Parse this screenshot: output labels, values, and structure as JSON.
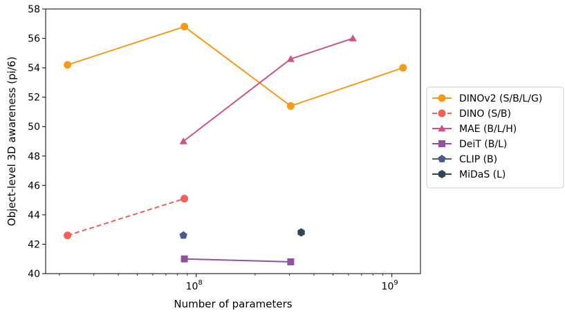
{
  "chart_data": {
    "type": "line",
    "title": "",
    "xlabel": "Number of parameters",
    "ylabel": "Object-level 3D awareness (pi/6)",
    "xscale": "log",
    "xlim": [
      17000000,
      1400000000
    ],
    "ylim": [
      40,
      58
    ],
    "yticks": [
      40,
      42,
      44,
      46,
      48,
      50,
      52,
      54,
      56,
      58
    ],
    "xticks": [
      {
        "value": 100000000,
        "base": "10",
        "exp": "8"
      },
      {
        "value": 1000000000,
        "base": "10",
        "exp": "9"
      }
    ],
    "grid": false,
    "legend_position": "right",
    "series": [
      {
        "name": "DINOv2 (S/B/L/G)",
        "color": "#f89a17",
        "marker": "circle",
        "dash": false,
        "points": [
          [
            22000000,
            54.2
          ],
          [
            87000000,
            56.8
          ],
          [
            304000000,
            51.4
          ],
          [
            1140000000,
            54.0
          ]
        ]
      },
      {
        "name": "DINO (S/B)",
        "color": "#f15f55",
        "marker": "circle",
        "dash": true,
        "points": [
          [
            22000000,
            42.6
          ],
          [
            87000000,
            45.1
          ]
        ]
      },
      {
        "name": "MAE (B/L/H)",
        "color": "#d15088",
        "marker": "triangle",
        "dash": false,
        "points": [
          [
            86000000,
            49.0
          ],
          [
            304000000,
            54.6
          ],
          [
            632000000,
            56.0
          ]
        ]
      },
      {
        "name": "DeiT (B/L)",
        "color": "#8e52a1",
        "marker": "square",
        "dash": false,
        "points": [
          [
            87000000,
            41.0
          ],
          [
            304000000,
            40.8
          ]
        ]
      },
      {
        "name": "CLIP (B)",
        "color": "#4a5a8c",
        "marker": "pentagon",
        "dash": false,
        "points": [
          [
            86000000,
            42.6
          ]
        ]
      },
      {
        "name": "MiDaS (L)",
        "color": "#2f4858",
        "marker": "hexagon",
        "dash": false,
        "points": [
          [
            344000000,
            42.8
          ]
        ]
      }
    ]
  }
}
